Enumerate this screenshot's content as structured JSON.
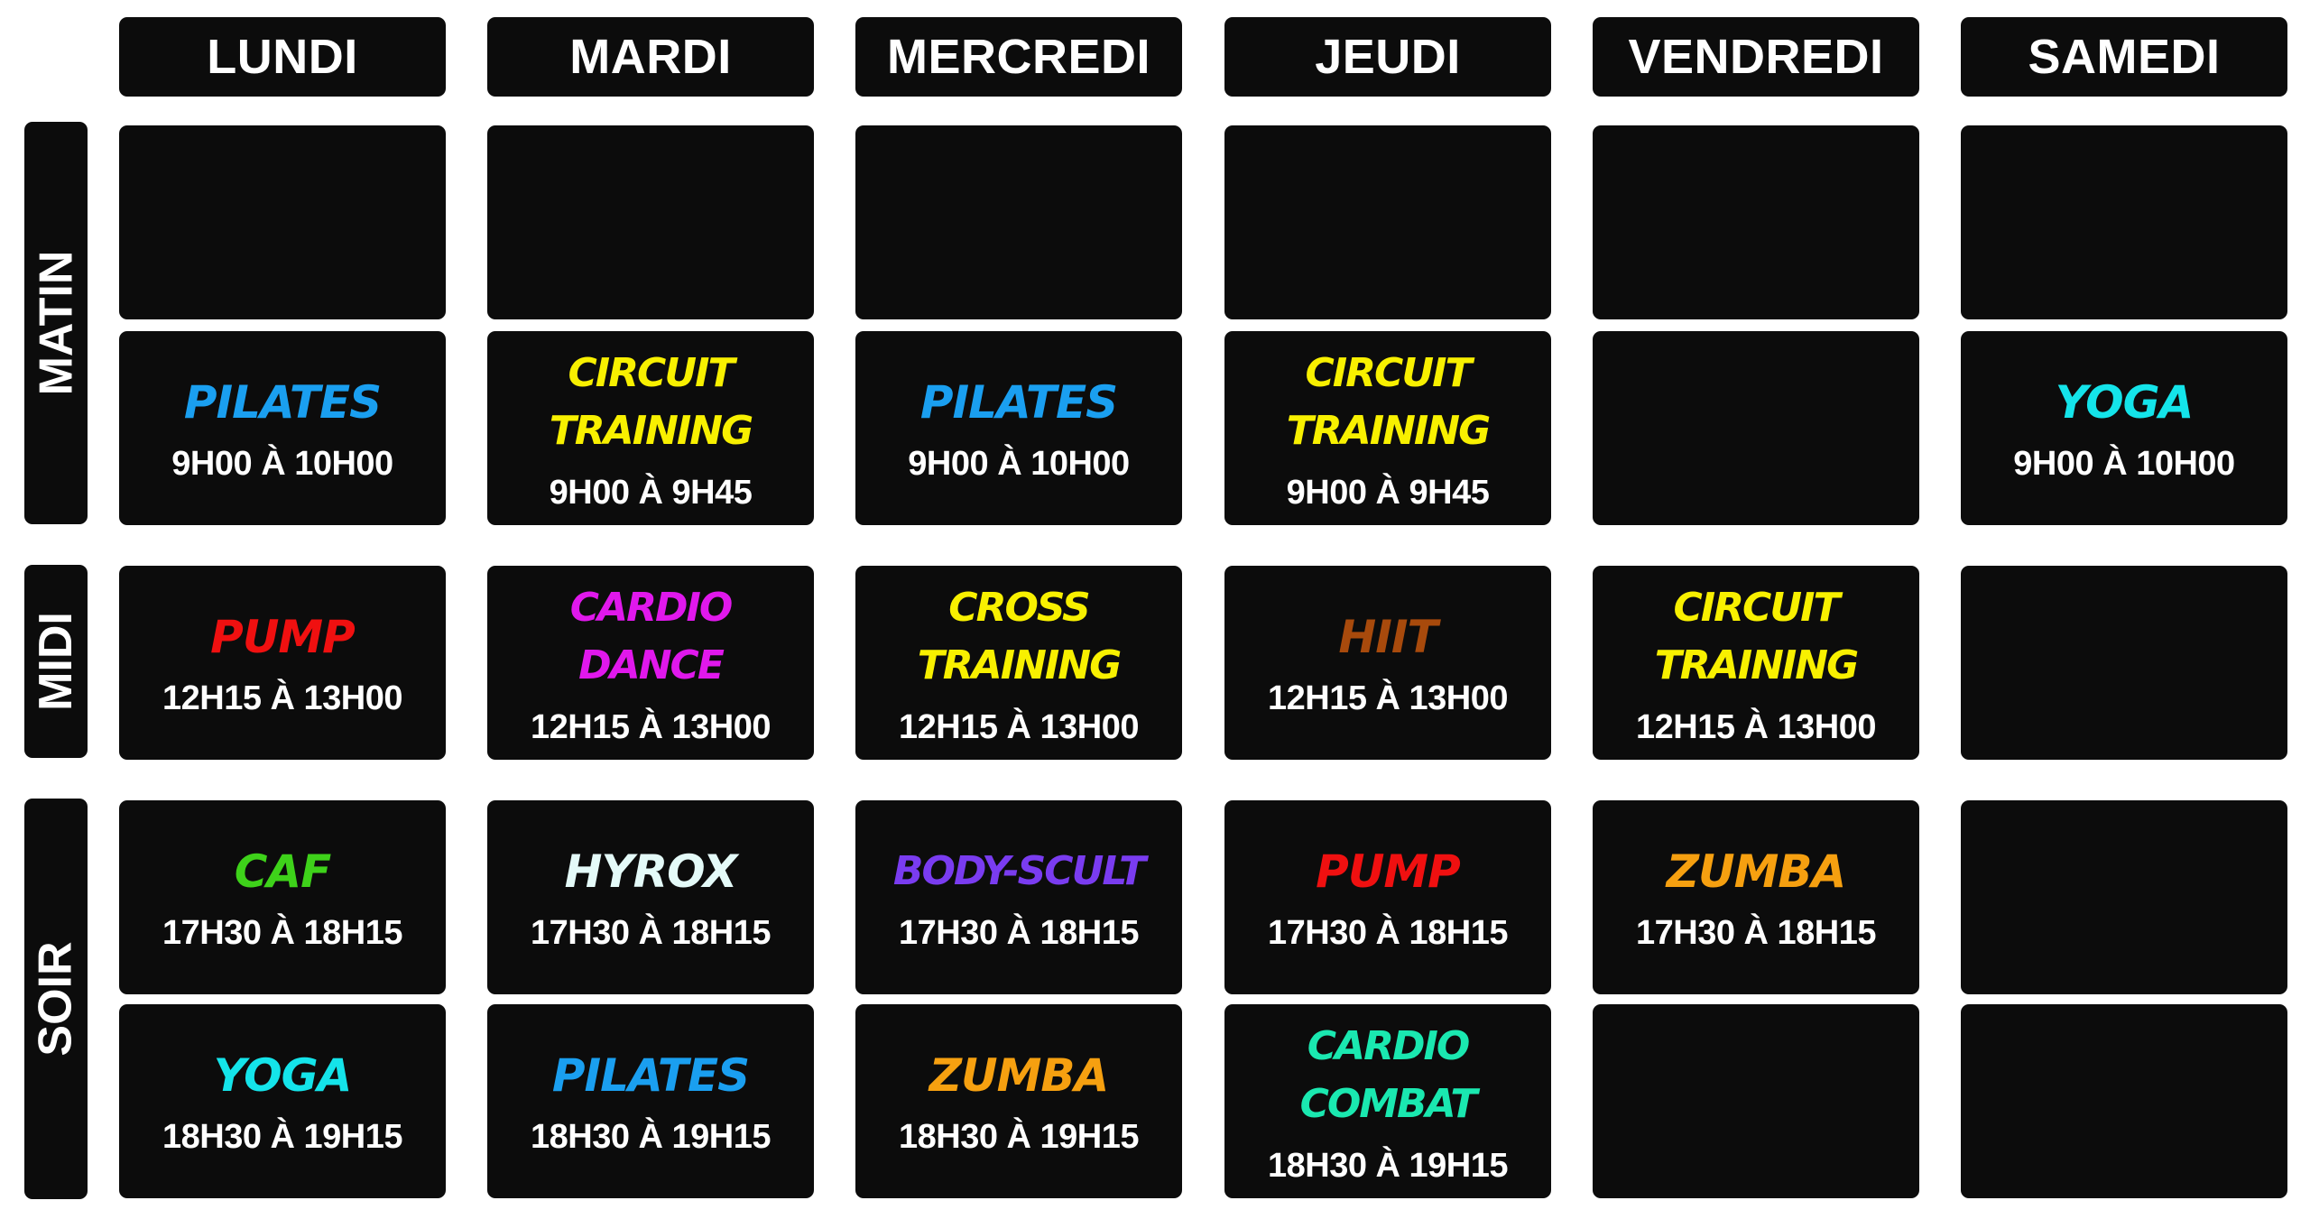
{
  "days": [
    "LUNDI",
    "MARDI",
    "MERCREDI",
    "JEUDI",
    "VENDREDI",
    "SAMEDI"
  ],
  "periods": [
    "MATIN",
    "MIDI",
    "SOIR"
  ],
  "rows": [
    {
      "period": "MATIN",
      "cells": [
        null,
        null,
        null,
        null,
        null,
        null
      ]
    },
    {
      "period": "MATIN",
      "cells": [
        {
          "name": "PILATES",
          "time": "9H00 À 10H00",
          "color": "#1a9ff0"
        },
        {
          "name": "CIRCUIT\nTRAINING",
          "time": "9H00 À 9H45",
          "color": "#f8f000"
        },
        {
          "name": "PILATES",
          "time": "9H00 À 10H00",
          "color": "#1a9ff0"
        },
        {
          "name": "CIRCUIT\nTRAINING",
          "time": "9H00 À 9H45",
          "color": "#f8f000"
        },
        null,
        {
          "name": "YOGA",
          "time": "9H00 À 10H00",
          "color": "#14e4ea"
        }
      ]
    },
    {
      "period": "MIDI",
      "cells": [
        {
          "name": "PUMP",
          "time": "12H15 À 13H00",
          "color": "#f01010"
        },
        {
          "name": "CARDIO\nDANCE",
          "time": "12H15 À 13H00",
          "color": "#e018ec"
        },
        {
          "name": "CROSS\nTRAINING",
          "time": "12H15 À 13H00",
          "color": "#f8f000"
        },
        {
          "name": "HIIT",
          "time": "12H15 À 13H00",
          "color": "#a84a0c"
        },
        {
          "name": "CIRCUIT\nTRAINING",
          "time": "12H15 À 13H00",
          "color": "#f8f000"
        },
        null
      ]
    },
    {
      "period": "SOIR",
      "cells": [
        {
          "name": "CAF",
          "time": "17H30 À 18H15",
          "color": "#3ed21a"
        },
        {
          "name": "HYROX",
          "time": "17H30 À 18H15",
          "color": "#e4faf8"
        },
        {
          "name": "BODY-SCULT",
          "time": "17H30 À 18H15",
          "color": "#7a3cf0"
        },
        {
          "name": "PUMP",
          "time": "17H30 À 18H15",
          "color": "#f01010"
        },
        {
          "name": "ZUMBA",
          "time": "17H30 À 18H15",
          "color": "#f6a010"
        },
        null
      ]
    },
    {
      "period": "SOIR",
      "cells": [
        {
          "name": "YOGA",
          "time": "18H30 À 19H15",
          "color": "#14e4ea"
        },
        {
          "name": "PILATES",
          "time": "18H30 À 19H15",
          "color": "#1a9ff0"
        },
        {
          "name": "ZUMBA",
          "time": "18H30 À 19H15",
          "color": "#f6a010"
        },
        {
          "name": "CARDIO\nCOMBAT",
          "time": "18H30 À 19H15",
          "color": "#1ae8b0"
        },
        null,
        null
      ]
    }
  ]
}
